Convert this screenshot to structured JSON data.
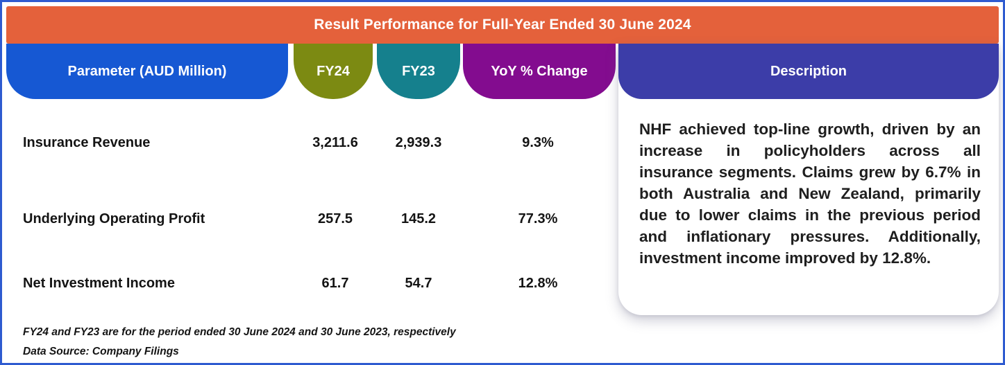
{
  "title": "Result Performance for Full-Year Ended 30 June 2024",
  "table": {
    "headers": {
      "parameter": "Parameter (AUD Million)",
      "fy24": "FY24",
      "fy23": "FY23",
      "yoy": "YoY % Change",
      "description": "Description"
    },
    "rows": [
      {
        "parameter": "Insurance Revenue",
        "fy24": "3,211.6",
        "fy23": "2,939.3",
        "yoy": "9.3%"
      },
      {
        "parameter": "Underlying Operating Profit",
        "fy24": "257.5",
        "fy23": "145.2",
        "yoy": "77.3%"
      },
      {
        "parameter": "Net Investment Income",
        "fy24": "61.7",
        "fy23": "54.7",
        "yoy": "12.8%"
      }
    ]
  },
  "description": "NHF achieved top-line growth, driven by an increase in policyholders across all insurance segments. Claims grew by 6.7% in both Australia and New Zealand, primarily due to lower claims in the previous period and inflationary pressures. Additionally, investment income improved by 12.8%.",
  "footnotes": {
    "period_note": "FY24 and FY23 are for the period ended 30 June 2024 and 30 June 2023, respectively",
    "source_note": "Data Source: Company Filings"
  },
  "colors": {
    "banner": "#E4613B",
    "parameter_header": "#1658D3",
    "fy24_header": "#7C8A12",
    "fy23_header": "#15808D",
    "yoy_header": "#830C8F",
    "description_header": "#3C3DA8",
    "border": "#2E5BD0",
    "text": "#141414"
  },
  "chart_data": {
    "type": "table",
    "title": "Result Performance for Full-Year Ended 30 June 2024",
    "columns": [
      "Parameter (AUD Million)",
      "FY24",
      "FY23",
      "YoY % Change"
    ],
    "rows": [
      [
        "Insurance Revenue",
        3211.6,
        2939.3,
        "9.3%"
      ],
      [
        "Underlying Operating Profit",
        257.5,
        145.2,
        "77.3%"
      ],
      [
        "Net Investment Income",
        61.7,
        54.7,
        "12.8%"
      ]
    ],
    "notes": [
      "FY24 and FY23 are for the period ended 30 June 2024 and 30 June 2023, respectively",
      "Data Source: Company Filings"
    ],
    "description": "NHF achieved top-line growth, driven by an increase in policyholders across all insurance segments. Claims grew by 6.7% in both Australia and New Zealand, primarily due to lower claims in the previous period and inflationary pressures. Additionally, investment income improved by 12.8%."
  }
}
